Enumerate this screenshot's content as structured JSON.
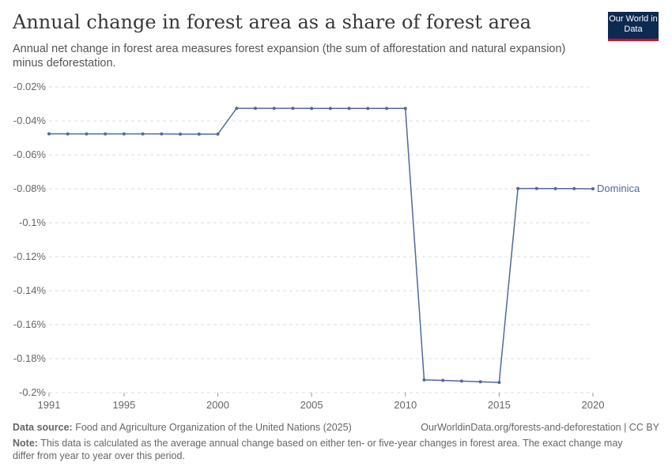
{
  "header": {
    "title": "Annual change in forest area as a share of forest area",
    "subtitle": "Annual net change in forest area measures forest expansion (the sum of afforestation and natural expansion) minus deforestation.",
    "logo": "Our World in Data"
  },
  "footer": {
    "source_label": "Data source:",
    "source": "Food and Agriculture Organization of the United Nations (2025)",
    "url": "OurWorldinData.org/forests-and-deforestation | CC BY",
    "note_label": "Note:",
    "note": "This data is calculated as the average annual change based on either ten- or five-year changes in forest area. The exact change may differ from year to year over this period."
  },
  "chart_data": {
    "type": "line",
    "title": "Annual change in forest area as a share of forest area",
    "xlim": [
      1991,
      2020
    ],
    "ylim": [
      -0.2,
      -0.02
    ],
    "x_ticks": [
      1991,
      1995,
      2000,
      2005,
      2010,
      2015,
      2020
    ],
    "y_ticks": [
      -0.02,
      -0.04,
      -0.06,
      -0.08,
      -0.1,
      -0.12,
      -0.14,
      -0.16,
      -0.18,
      -0.2
    ],
    "y_tick_labels": [
      "-0.02%",
      "-0.04%",
      "-0.06%",
      "-0.08%",
      "-0.1%",
      "-0.12%",
      "-0.14%",
      "-0.16%",
      "-0.18%",
      "-0.2%"
    ],
    "grid": "horizontal dashed",
    "series": [
      {
        "name": "Dominica",
        "color": "#4c6a9c",
        "x": [
          1991,
          1992,
          1993,
          1994,
          1995,
          1996,
          1997,
          1998,
          1999,
          2000,
          2001,
          2002,
          2003,
          2004,
          2005,
          2006,
          2007,
          2008,
          2009,
          2010,
          2011,
          2012,
          2013,
          2014,
          2015,
          2016,
          2017,
          2018,
          2019,
          2020
        ],
        "values": [
          -0.0476,
          -0.0477,
          -0.0477,
          -0.0477,
          -0.0477,
          -0.0477,
          -0.0477,
          -0.0478,
          -0.0478,
          -0.0478,
          -0.0326,
          -0.0326,
          -0.0326,
          -0.0326,
          -0.0327,
          -0.0327,
          -0.0327,
          -0.0327,
          -0.0327,
          -0.0327,
          -0.1925,
          -0.1928,
          -0.1932,
          -0.1936,
          -0.194,
          -0.0798,
          -0.0798,
          -0.0799,
          -0.0799,
          -0.08
        ]
      }
    ]
  }
}
